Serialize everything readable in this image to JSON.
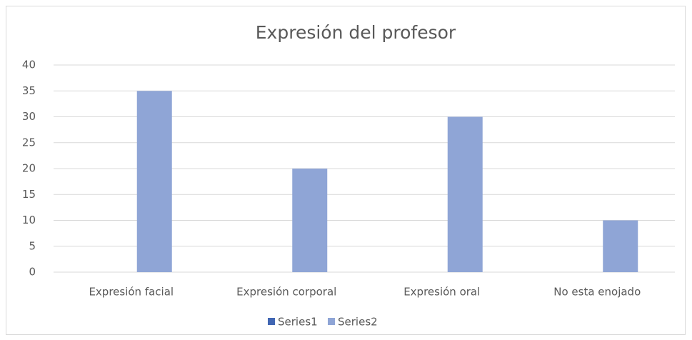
{
  "chart_data": {
    "type": "bar",
    "title": "Expresión del profesor",
    "categories": [
      "Expresión facial",
      "Expresión corporal",
      "Expresión oral",
      "No esta enojado"
    ],
    "series": [
      {
        "name": "Series1",
        "color": "#4166b3",
        "values": [
          0,
          0,
          0,
          0
        ]
      },
      {
        "name": "Series2",
        "color": "#8fa5d6",
        "values": [
          35,
          20,
          30,
          10
        ]
      }
    ],
    "ylim": [
      0,
      40
    ],
    "yticks": [
      0,
      5,
      10,
      15,
      20,
      25,
      30,
      35,
      40
    ],
    "grid": true,
    "legend": "bottom"
  }
}
